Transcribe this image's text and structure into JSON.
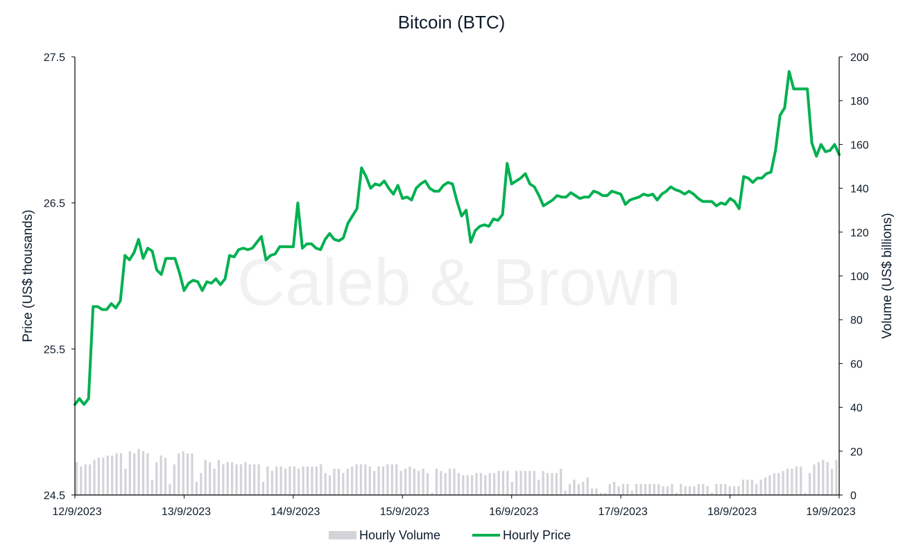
{
  "chart_data": {
    "type": "bar+line",
    "title": "Bitcoin (BTC)",
    "watermark": "Caleb & Brown",
    "ylabel_left": "Price (US$ thousands)",
    "ylabel_right": "Volume (US$ billions)",
    "ylim_left": [
      24.5,
      27.5
    ],
    "ylim_right": [
      0,
      200
    ],
    "yticks_left": [
      "24.5",
      "25.5",
      "26.5",
      "27.5"
    ],
    "yticks_right": [
      "0",
      "20",
      "40",
      "60",
      "80",
      "100",
      "120",
      "140",
      "160",
      "180",
      "200"
    ],
    "x_range": [
      "12/9/2023",
      "19/9/2023"
    ],
    "xticks": [
      "12/9/2023",
      "13/9/2023",
      "14/9/2023",
      "15/9/2023",
      "16/9/2023",
      "17/9/2023",
      "18/9/2023",
      "19/9/2023"
    ],
    "colors": {
      "price": "#00b050",
      "volume": "#d3d3d8",
      "axis": "#000000",
      "text": "#0d1b2a"
    },
    "grid": false,
    "legend_position": "bottom-center",
    "series": [
      {
        "name": "Hourly Volume",
        "type": "bar",
        "unit": "US$ billions",
        "values": [
          15,
          13,
          14,
          14,
          16,
          17,
          17,
          18,
          18,
          19,
          19,
          12,
          20,
          19,
          21,
          20,
          19,
          7,
          15,
          18,
          17,
          5,
          14,
          19,
          20,
          19,
          19,
          6,
          10,
          16,
          15,
          12,
          16,
          14,
          15,
          15,
          14,
          14,
          15,
          14,
          14,
          14,
          6,
          13,
          11,
          13,
          13,
          12,
          13,
          13,
          12,
          13,
          13,
          13,
          13,
          14,
          10,
          9,
          12,
          12,
          10,
          12,
          13,
          14,
          14,
          14,
          13,
          11,
          13,
          13,
          14,
          14,
          14,
          11,
          12,
          13,
          12,
          11,
          12,
          10,
          1,
          12,
          11,
          10,
          12,
          12,
          10,
          9,
          9,
          9,
          10,
          10,
          9,
          10,
          10,
          11,
          11,
          11,
          6,
          11,
          11,
          11,
          11,
          11,
          7,
          11,
          10,
          10,
          10,
          12,
          2,
          5,
          7,
          5,
          6,
          8,
          3,
          3,
          1,
          1,
          5,
          6,
          4,
          5,
          5,
          2,
          5,
          5,
          5,
          5,
          5,
          5,
          4,
          4,
          5,
          1,
          5,
          4,
          4,
          4,
          5,
          5,
          4,
          1,
          5,
          5,
          5,
          4,
          4,
          4,
          7,
          7,
          7,
          5,
          7,
          8,
          9,
          10,
          10,
          11,
          12,
          12,
          13,
          13,
          1,
          10,
          14,
          15,
          16,
          15,
          12,
          16
        ]
      },
      {
        "name": "Hourly Price",
        "type": "line",
        "unit": "US$ thousands",
        "values": [
          25.12,
          25.16,
          25.12,
          25.16,
          25.79,
          25.79,
          25.77,
          25.77,
          25.81,
          25.78,
          25.83,
          26.14,
          26.11,
          26.16,
          26.25,
          26.12,
          26.19,
          26.17,
          26.04,
          26.01,
          26.12,
          26.12,
          26.12,
          26.02,
          25.9,
          25.95,
          25.97,
          25.96,
          25.9,
          25.96,
          25.95,
          25.98,
          25.94,
          25.98,
          26.14,
          26.13,
          26.18,
          26.19,
          26.18,
          26.19,
          26.23,
          26.27,
          26.11,
          26.14,
          26.15,
          26.2,
          26.2,
          26.2,
          26.2,
          26.5,
          26.19,
          26.22,
          26.22,
          26.19,
          26.18,
          26.25,
          26.29,
          26.25,
          26.24,
          26.26,
          26.36,
          26.41,
          26.46,
          26.74,
          26.68,
          26.6,
          26.63,
          26.62,
          26.65,
          26.6,
          26.56,
          26.62,
          26.53,
          26.54,
          26.52,
          26.6,
          26.63,
          26.65,
          26.6,
          26.58,
          26.58,
          26.62,
          26.64,
          26.63,
          26.51,
          26.41,
          26.45,
          26.23,
          26.31,
          26.34,
          26.35,
          26.34,
          26.39,
          26.38,
          26.42,
          26.77,
          26.63,
          26.65,
          26.67,
          26.7,
          26.63,
          26.61,
          26.55,
          26.48,
          26.5,
          26.52,
          26.55,
          26.54,
          26.54,
          26.57,
          26.55,
          26.53,
          26.54,
          26.54,
          26.58,
          26.57,
          26.55,
          26.55,
          26.58,
          26.57,
          26.56,
          26.49,
          26.52,
          26.53,
          26.54,
          26.56,
          26.55,
          26.56,
          26.52,
          26.56,
          26.58,
          26.61,
          26.59,
          26.58,
          26.56,
          26.58,
          26.56,
          26.53,
          26.51,
          26.51,
          26.51,
          26.48,
          26.5,
          26.49,
          26.53,
          26.51,
          26.46,
          26.68,
          26.67,
          26.64,
          26.67,
          26.67,
          26.7,
          26.71,
          26.86,
          27.1,
          27.15,
          27.4,
          27.28,
          27.28,
          27.28,
          27.28,
          26.91,
          26.82,
          26.9,
          26.85,
          26.86,
          26.9,
          26.83
        ]
      }
    ]
  }
}
